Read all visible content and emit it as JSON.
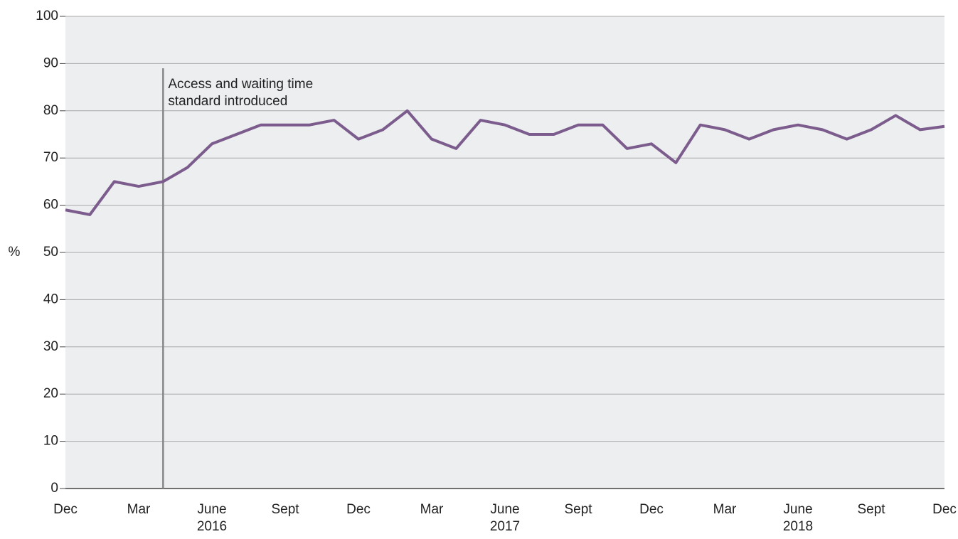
{
  "chart_data": {
    "type": "line",
    "y_label": "%",
    "categories": [
      "Dec",
      null,
      null,
      "Mar",
      null,
      null,
      "June\n2016",
      null,
      null,
      "Sept",
      null,
      null,
      "Dec",
      null,
      null,
      "Mar",
      null,
      null,
      "June\n2017",
      null,
      null,
      "Sept",
      null,
      null,
      "Dec",
      null,
      null,
      "Mar",
      null,
      null,
      "June\n2018",
      null,
      null,
      "Sept",
      null,
      null,
      "Dec"
    ],
    "series": [
      {
        "color": "#7b5c8c",
        "values": [
          59,
          58,
          65,
          64,
          65,
          68,
          73,
          75,
          77,
          77,
          77,
          78,
          74,
          76,
          80,
          74,
          72,
          78,
          77,
          75,
          75,
          77,
          77,
          72,
          73,
          69,
          77,
          76,
          74,
          76,
          77,
          76,
          74,
          76,
          79,
          76,
          76.7
        ]
      }
    ],
    "ylim": [
      0,
      100
    ],
    "yticks": [
      0,
      10,
      20,
      30,
      40,
      50,
      60,
      70,
      80,
      90,
      100
    ],
    "grid": true,
    "annotation": {
      "text": "Access and waiting time\nstandard introduced",
      "category": 4
    }
  }
}
